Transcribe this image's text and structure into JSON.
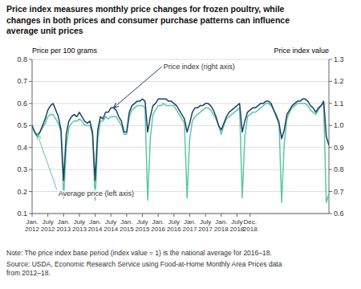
{
  "chart_data": {
    "type": "line",
    "title": "Price index measures monthly price changes for frozen poultry, while\nchanges in both prices and consumer purchase patterns can influence\naverage unit prices",
    "ylabel": "Price per 100 grams",
    "y2label": "Price index value",
    "note": "Note: The price index base period (index value = 1) is the national average for 2016–18.",
    "source": "Source: USDA, Economic Research Service using Food-at-Home Monthly Area Prices data\nfrom 2012–18.",
    "grid": true,
    "ylim": [
      0.1,
      0.8
    ],
    "yticks": [
      0.1,
      0.2,
      0.3,
      0.4,
      0.5,
      0.6,
      0.7,
      0.8
    ],
    "y2lim": [
      0.6,
      1.3
    ],
    "y2ticks": [
      0.6,
      0.7,
      0.8,
      0.9,
      {
        "value": 1,
        "label": "1.0"
      },
      1.1,
      1.2,
      1.3
    ],
    "categories": [
      "Jan.\n2012",
      null,
      null,
      null,
      null,
      null,
      "July\n2012",
      null,
      null,
      null,
      null,
      null,
      "Jan.\n2013",
      null,
      null,
      null,
      null,
      null,
      "July\n2013",
      null,
      null,
      null,
      null,
      null,
      "Jan.\n2014",
      null,
      null,
      null,
      null,
      null,
      "July\n2014",
      null,
      null,
      null,
      null,
      null,
      "Jan.\n2015",
      null,
      null,
      null,
      null,
      null,
      "July\n2015",
      null,
      null,
      null,
      null,
      null,
      "Jan.\n2016",
      null,
      null,
      null,
      null,
      null,
      "July\n2016",
      null,
      null,
      null,
      null,
      null,
      "Jan.\n2017",
      null,
      null,
      null,
      null,
      null,
      "July\n2017",
      null,
      null,
      null,
      null,
      null,
      "Jan.\n2018",
      null,
      null,
      null,
      null,
      null,
      "July\n2018",
      null,
      null,
      null,
      null,
      "Dec.\n2018",
      null,
      null,
      null,
      null,
      null,
      null,
      null,
      null,
      null,
      null,
      null,
      null,
      null,
      null,
      null,
      null,
      null,
      null,
      null,
      null,
      null,
      null,
      null,
      null,
      null,
      null,
      null,
      null,
      null,
      null
    ],
    "series": [
      {
        "name": "Average price (left axis)",
        "color": "#5bc8a0",
        "values": [
          0.49,
          0.47,
          0.46,
          0.47,
          0.49,
          0.51,
          0.54,
          0.55,
          0.55,
          0.53,
          0.51,
          0.47,
          0.17,
          0.4,
          0.49,
          0.51,
          0.52,
          0.52,
          0.53,
          0.52,
          0.5,
          0.5,
          0.5,
          0.46,
          0.16,
          0.44,
          0.52,
          0.52,
          0.54,
          0.53,
          0.54,
          0.54,
          0.54,
          0.52,
          0.5,
          0.46,
          0.46,
          0.54,
          0.57,
          0.58,
          0.59,
          0.59,
          0.59,
          0.58,
          0.16,
          0.44,
          0.55,
          0.57,
          0.59,
          0.59,
          0.6,
          0.59,
          0.59,
          0.59,
          0.59,
          0.57,
          0.55,
          0.53,
          0.51,
          0.17,
          0.44,
          0.52,
          0.54,
          0.55,
          0.56,
          0.57,
          0.58,
          0.58,
          0.57,
          0.55,
          0.53,
          0.5,
          0.46,
          0.5,
          0.53,
          0.54,
          0.55,
          0.56,
          0.57,
          0.58,
          0.17,
          0.45,
          0.54,
          0.55,
          0.56,
          0.56,
          0.57,
          0.58,
          0.59,
          0.6,
          0.6,
          0.59,
          0.57,
          0.55,
          0.52,
          0.15,
          0.42,
          0.53,
          0.56,
          0.58,
          0.59,
          0.6,
          0.6,
          0.6,
          0.6,
          0.59,
          0.57,
          0.56,
          0.55,
          0.57,
          0.59,
          0.6,
          0.15,
          0.19
        ]
      },
      {
        "name": "Price index (right axis)",
        "color": "#1c3f6e",
        "axis": "y2",
        "values": [
          1.0,
          0.97,
          0.95,
          0.97,
          1.0,
          1.03,
          1.07,
          1.09,
          1.1,
          1.07,
          1.04,
          0.98,
          0.75,
          0.96,
          1.02,
          1.04,
          1.05,
          1.04,
          1.06,
          1.04,
          1.02,
          1.01,
          1.02,
          0.97,
          0.75,
          0.98,
          1.04,
          1.03,
          1.06,
          1.06,
          1.08,
          1.08,
          1.07,
          1.04,
          1.02,
          0.97,
          0.97,
          1.06,
          1.09,
          1.1,
          1.11,
          1.11,
          1.12,
          1.11,
          0.97,
          1.04,
          1.09,
          1.1,
          1.12,
          1.12,
          1.12,
          1.12,
          1.11,
          1.11,
          1.1,
          1.09,
          1.07,
          1.05,
          1.03,
          0.97,
          1.01,
          1.06,
          1.08,
          1.08,
          1.09,
          1.09,
          1.1,
          1.1,
          1.09,
          1.07,
          1.04,
          1.0,
          0.98,
          1.01,
          1.04,
          1.06,
          1.07,
          1.08,
          1.09,
          1.1,
          0.97,
          1.02,
          1.06,
          1.07,
          1.08,
          1.08,
          1.09,
          1.1,
          1.1,
          1.11,
          1.11,
          1.1,
          1.07,
          1.04,
          1.01,
          0.94,
          0.98,
          1.05,
          1.07,
          1.09,
          1.1,
          1.11,
          1.11,
          1.12,
          1.12,
          1.11,
          1.09,
          1.08,
          1.06,
          1.08,
          1.09,
          1.11,
          0.95,
          0.91
        ]
      }
    ]
  }
}
